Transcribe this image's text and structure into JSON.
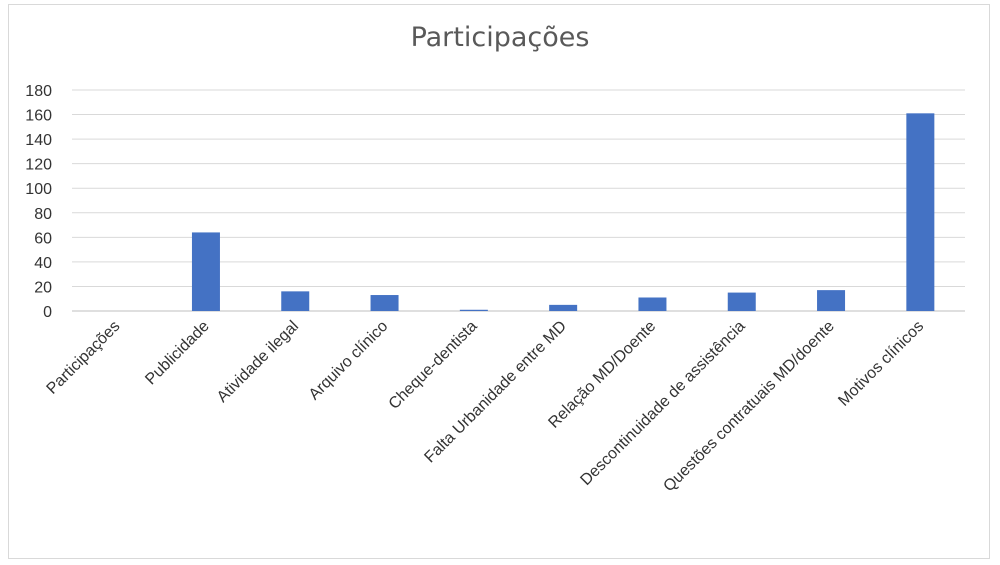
{
  "chart_data": {
    "type": "bar",
    "title": "Participações",
    "categories": [
      "Participações",
      "Publicidade",
      "Atividade ilegal",
      "Arquivo clínico",
      "Cheque-dentista",
      "Falta Urbanidade entre MD",
      "Relação MD/Doente",
      "Descontinuidade de assistência",
      "Questões contratuais MD/doente",
      "Motivos clínicos"
    ],
    "values": [
      0,
      64,
      16,
      13,
      1,
      5,
      11,
      15,
      17,
      161
    ],
    "ylim": [
      0,
      180
    ],
    "yticks": [
      0,
      20,
      40,
      60,
      80,
      100,
      120,
      140,
      160,
      180
    ],
    "xlabel": "",
    "ylabel": "",
    "grid": true,
    "legend": "none",
    "bar_color": "#4472c4"
  }
}
